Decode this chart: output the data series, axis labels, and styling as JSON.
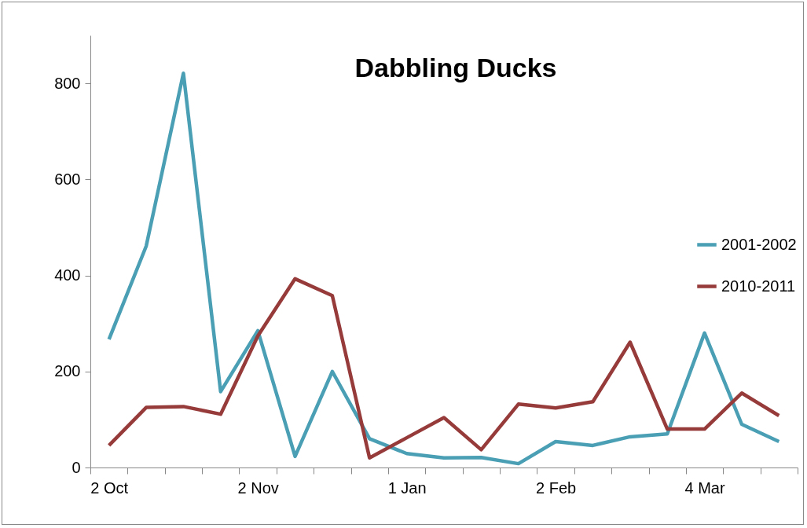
{
  "chart_data": {
    "type": "line",
    "title": "Dabbling Ducks",
    "categories": [
      "2 Oct",
      null,
      null,
      null,
      "2 Nov",
      null,
      null,
      null,
      "1 Jan",
      null,
      null,
      null,
      "2  Feb",
      null,
      null,
      null,
      "4 Mar",
      null,
      null
    ],
    "series": [
      {
        "name": "2001-2002",
        "color": "#4a9fb5",
        "values": [
          267,
          461,
          821,
          158,
          285,
          23,
          200,
          60,
          29,
          20,
          21,
          8,
          54,
          46,
          64,
          70,
          280,
          90,
          54
        ]
      },
      {
        "name": "2010-2011",
        "color": "#963a3a",
        "values": [
          46,
          125,
          127,
          111,
          274,
          393,
          358,
          20,
          62,
          104,
          37,
          132,
          124,
          137,
          261,
          80,
          80,
          155,
          108
        ]
      }
    ],
    "ylim": [
      0,
      900
    ],
    "yticks": [
      0,
      200,
      400,
      600,
      800
    ],
    "grid": false,
    "legend": "right",
    "marker": "none",
    "line_style": "solid"
  }
}
